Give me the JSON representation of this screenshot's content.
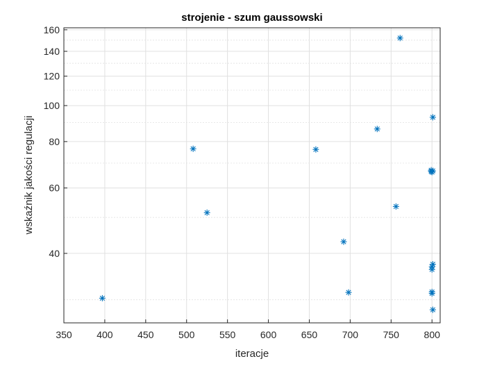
{
  "chart_data": {
    "type": "scatter",
    "title": "strojenie - szum gaussowski",
    "xlabel": "iteracje",
    "ylabel": "wskaźnik jakości regulacji",
    "xlim": [
      350,
      810
    ],
    "ylim": [
      26,
      162
    ],
    "y_scale": "log",
    "x_ticks": [
      350,
      400,
      450,
      500,
      550,
      600,
      650,
      700,
      750,
      800
    ],
    "y_ticks": [
      40,
      60,
      80,
      100,
      120,
      140,
      160
    ],
    "grid": true,
    "minor_grid": true,
    "box": true,
    "marker": "asterisk",
    "marker_color": "#0072BD",
    "series": [
      {
        "x": [
          397,
          508,
          525,
          658,
          692,
          698,
          733,
          756,
          761,
          799,
          799,
          800,
          800,
          800,
          800,
          800,
          801,
          801,
          801,
          801
        ],
        "y": [
          30.3,
          76.5,
          51.5,
          76.2,
          43.0,
          31.4,
          86.5,
          53.5,
          152.0,
          67.0,
          66.5,
          66.2,
          36.8,
          36.2,
          31.5,
          31.2,
          28.2,
          37.4,
          93.0,
          66.7
        ]
      }
    ]
  }
}
